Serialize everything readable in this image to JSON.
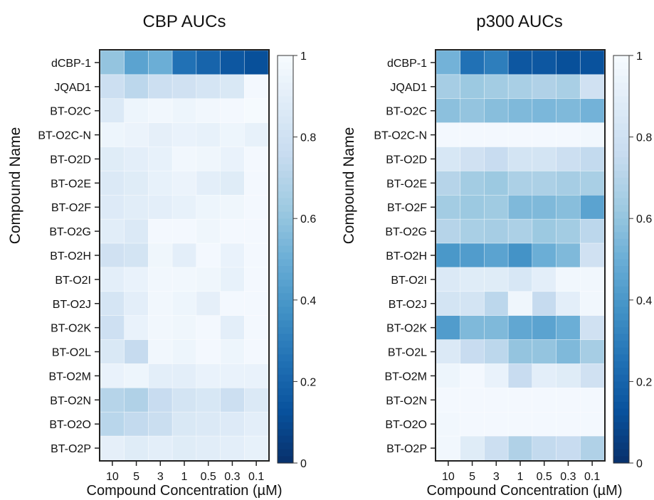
{
  "chart_data": [
    {
      "type": "heatmap",
      "title": "CBP AUCs",
      "xlabel": "Compound Concentration (µM)",
      "ylabel": "Compound Name",
      "x": [
        "10",
        "5",
        "3",
        "1",
        "0.5",
        "0.3",
        "0.1"
      ],
      "y": [
        "dCBP-1",
        "JQAD1",
        "BT-O2C",
        "BT-O2C-N",
        "BT-O2D",
        "BT-O2E",
        "BT-O2F",
        "BT-O2G",
        "BT-O2H",
        "BT-O2I",
        "BT-O2J",
        "BT-O2K",
        "BT-O2L",
        "BT-O2M",
        "BT-O2N",
        "BT-O2O",
        "BT-O2P"
      ],
      "values": [
        [
          0.6,
          0.45,
          0.5,
          0.25,
          0.2,
          0.15,
          0.12
        ],
        [
          0.78,
          0.72,
          0.78,
          0.8,
          0.83,
          0.85,
          0.98
        ],
        [
          0.86,
          0.95,
          0.97,
          0.95,
          0.97,
          0.98,
          0.99
        ],
        [
          0.95,
          0.94,
          0.91,
          0.93,
          0.92,
          0.95,
          0.92
        ],
        [
          0.88,
          0.9,
          0.92,
          0.97,
          0.96,
          0.93,
          0.98
        ],
        [
          0.86,
          0.88,
          0.92,
          0.94,
          0.9,
          0.88,
          0.98
        ],
        [
          0.87,
          0.89,
          0.9,
          0.92,
          0.95,
          0.96,
          0.98
        ],
        [
          0.89,
          0.86,
          0.98,
          0.98,
          0.96,
          0.98,
          0.98
        ],
        [
          0.8,
          0.82,
          0.96,
          0.9,
          0.98,
          0.93,
          0.98
        ],
        [
          0.9,
          0.93,
          0.97,
          0.97,
          0.96,
          0.92,
          0.98
        ],
        [
          0.83,
          0.9,
          0.97,
          0.95,
          0.91,
          0.98,
          0.98
        ],
        [
          0.79,
          0.93,
          0.97,
          0.96,
          0.98,
          0.9,
          0.98
        ],
        [
          0.85,
          0.75,
          0.97,
          0.95,
          0.98,
          0.95,
          0.98
        ],
        [
          0.93,
          0.95,
          0.9,
          0.9,
          0.93,
          0.93,
          0.93
        ],
        [
          0.7,
          0.68,
          0.76,
          0.82,
          0.84,
          0.78,
          0.86
        ],
        [
          0.71,
          0.74,
          0.77,
          0.85,
          0.86,
          0.87,
          0.9
        ],
        [
          0.91,
          0.88,
          0.9,
          0.88,
          0.89,
          0.9,
          0.92
        ]
      ],
      "colorbar": {
        "min": 0,
        "max": 1,
        "ticks": [
          "0",
          "0.2",
          "0.4",
          "0.6",
          "0.8",
          "1"
        ]
      },
      "colormap": {
        "low": "#08306b",
        "high": "#f7fbff"
      }
    },
    {
      "type": "heatmap",
      "title": "p300 AUCs",
      "xlabel": "Compound Concentration (µM)",
      "ylabel": "Compound Name",
      "x": [
        "10",
        "5",
        "3",
        "1",
        "0.5",
        "0.3",
        "0.1"
      ],
      "y": [
        "dCBP-1",
        "JQAD1",
        "BT-O2C",
        "BT-O2C-N",
        "BT-O2D",
        "BT-O2E",
        "BT-O2F",
        "BT-O2G",
        "BT-O2H",
        "BT-O2I",
        "BT-O2J",
        "BT-O2K",
        "BT-O2L",
        "BT-O2M",
        "BT-O2N",
        "BT-O2O",
        "BT-O2P"
      ],
      "values": [
        [
          0.52,
          0.25,
          0.3,
          0.15,
          0.15,
          0.12,
          0.13
        ],
        [
          0.65,
          0.62,
          0.64,
          0.66,
          0.68,
          0.66,
          0.8
        ],
        [
          0.58,
          0.6,
          0.57,
          0.55,
          0.54,
          0.55,
          0.52
        ],
        [
          0.98,
          0.98,
          0.98,
          0.98,
          0.98,
          0.98,
          0.97
        ],
        [
          0.84,
          0.8,
          0.76,
          0.82,
          0.82,
          0.78,
          0.74
        ],
        [
          0.7,
          0.64,
          0.62,
          0.67,
          0.67,
          0.65,
          0.66
        ],
        [
          0.64,
          0.62,
          0.63,
          0.55,
          0.55,
          0.57,
          0.45
        ],
        [
          0.7,
          0.66,
          0.65,
          0.67,
          0.62,
          0.64,
          0.72
        ],
        [
          0.4,
          0.42,
          0.45,
          0.38,
          0.5,
          0.55,
          0.8
        ],
        [
          0.86,
          0.88,
          0.88,
          0.84,
          0.9,
          0.97,
          0.97
        ],
        [
          0.82,
          0.82,
          0.72,
          0.96,
          0.75,
          0.9,
          0.97
        ],
        [
          0.42,
          0.55,
          0.55,
          0.47,
          0.45,
          0.5,
          0.8
        ],
        [
          0.86,
          0.76,
          0.72,
          0.6,
          0.6,
          0.55,
          0.65
        ],
        [
          0.95,
          0.98,
          0.93,
          0.76,
          0.9,
          0.88,
          0.8
        ],
        [
          0.98,
          0.98,
          0.98,
          0.98,
          0.98,
          0.98,
          0.98
        ],
        [
          0.97,
          0.98,
          0.98,
          0.98,
          0.98,
          0.98,
          0.98
        ],
        [
          0.97,
          0.88,
          0.78,
          0.68,
          0.74,
          0.76,
          0.68
        ]
      ],
      "colorbar": {
        "min": 0,
        "max": 1,
        "ticks": [
          "0",
          "0.2",
          "0.4",
          "0.6",
          "0.8",
          "1"
        ]
      },
      "colormap": {
        "low": "#08306b",
        "high": "#f7fbff"
      }
    }
  ]
}
